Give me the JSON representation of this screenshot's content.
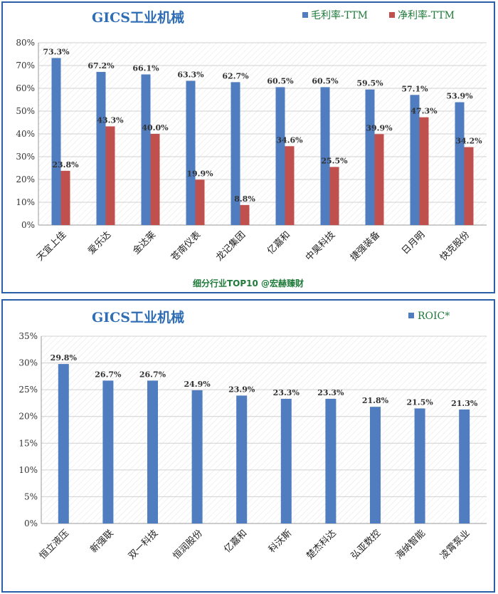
{
  "colors": {
    "blue": "#4f7dc0",
    "red": "#c0504d",
    "border": "#2b5fa8",
    "title": "#2f6db5",
    "legend": "#1f7a3a"
  },
  "footer": "细分行业TOP10 @宏赫臻财",
  "chart_data": [
    {
      "type": "bar",
      "title": "GICS工业机械",
      "categories": [
        "天宜上佳",
        "爱乐达",
        "金达莱",
        "苍南仪表",
        "龙记集团",
        "亿嘉和",
        "中昊科技",
        "捷强装备",
        "日月明",
        "快克股份"
      ],
      "series": [
        {
          "name": "毛利率-TTM",
          "values": [
            73.3,
            67.2,
            66.1,
            63.3,
            62.7,
            60.5,
            60.5,
            59.5,
            57.1,
            53.9
          ],
          "labels": [
            "73.3%",
            "67.2%",
            "66.1%",
            "63.3%",
            "62.7%",
            "60.5%",
            "60.5%",
            "59.5%",
            "57.1%",
            "53.9%"
          ]
        },
        {
          "name": "净利率-TTM",
          "values": [
            23.8,
            43.3,
            40.0,
            19.9,
            8.8,
            34.6,
            25.5,
            39.9,
            47.3,
            34.2
          ],
          "labels": [
            "23.8%",
            "43.3%",
            "40.0%",
            "19.9%",
            "8.8%",
            "34.6%",
            "25.5%",
            "39.9%",
            "47.3%",
            "34.2%"
          ]
        }
      ],
      "yticks": [
        "0%",
        "10%",
        "20%",
        "30%",
        "40%",
        "50%",
        "60%",
        "70%",
        "80%"
      ],
      "ylim": [
        0,
        80
      ],
      "legend": "top-right",
      "grid": true
    },
    {
      "type": "bar",
      "title": "GICS工业机械",
      "categories": [
        "恒立液压",
        "新强联",
        "双一科技",
        "恒润股份",
        "亿嘉和",
        "科沃斯",
        "楚杰科达",
        "弘亚数控",
        "海纳智能",
        "凌霄泵业"
      ],
      "series": [
        {
          "name": "ROIC*",
          "values": [
            29.8,
            26.7,
            26.7,
            24.9,
            23.9,
            23.3,
            23.3,
            21.8,
            21.5,
            21.3
          ],
          "labels": [
            "29.8%",
            "26.7%",
            "26.7%",
            "24.9%",
            "23.9%",
            "23.3%",
            "23.3%",
            "21.8%",
            "21.5%",
            "21.3%"
          ]
        }
      ],
      "yticks": [
        "0%",
        "5%",
        "10%",
        "15%",
        "20%",
        "25%",
        "30%",
        "35%"
      ],
      "ylim": [
        0,
        35
      ],
      "legend": "top-right",
      "grid": true
    }
  ]
}
